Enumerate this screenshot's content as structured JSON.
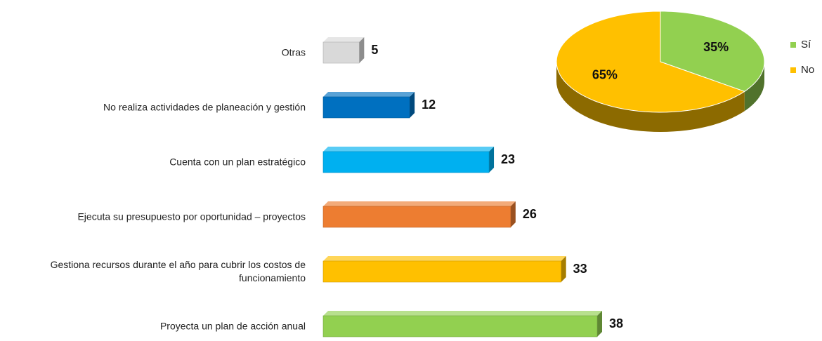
{
  "chart_data": [
    {
      "type": "bar3d",
      "categories": [
        "Otras",
        "No realiza actividades de planeación y gestión",
        "Cuenta con un plan estratégico",
        "Ejecuta su presupuesto por oportunidad – proyectos",
        "Gestiona recursos durante el año para cubrir los costos de funcionamiento",
        "Proyecta un plan de acción anual"
      ],
      "values": [
        5,
        12,
        23,
        26,
        33,
        38
      ],
      "colors": [
        "#d9d9d9",
        "#0070c0",
        "#00b0f0",
        "#ed7d31",
        "#ffc000",
        "#92d050"
      ]
    },
    {
      "type": "pie3d",
      "categories": [
        "Sí",
        "No"
      ],
      "values": [
        35,
        65
      ],
      "value_labels": [
        "35%",
        "65%"
      ],
      "colors": [
        "#92d050",
        "#ffc000"
      ],
      "legend": "right"
    }
  ]
}
